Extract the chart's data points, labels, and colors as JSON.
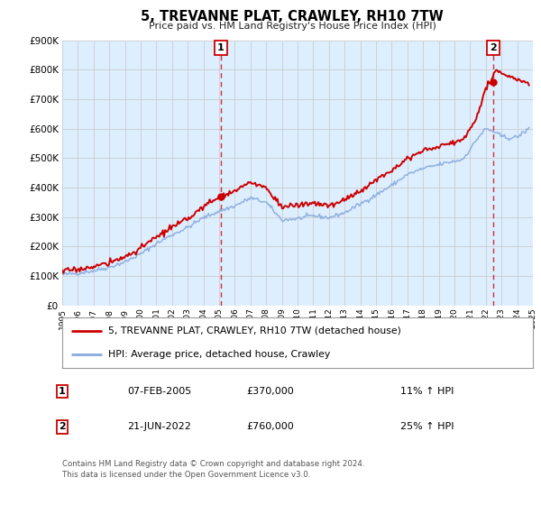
{
  "title": "5, TREVANNE PLAT, CRAWLEY, RH10 7TW",
  "subtitle": "Price paid vs. HM Land Registry's House Price Index (HPI)",
  "legend_line1": "5, TREVANNE PLAT, CRAWLEY, RH10 7TW (detached house)",
  "legend_line2": "HPI: Average price, detached house, Crawley",
  "sale1_date": "07-FEB-2005",
  "sale1_price": "£370,000",
  "sale1_hpi": "11% ↑ HPI",
  "sale2_date": "21-JUN-2022",
  "sale2_price": "£760,000",
  "sale2_hpi": "25% ↑ HPI",
  "footnote1": "Contains HM Land Registry data © Crown copyright and database right 2024.",
  "footnote2": "This data is licensed under the Open Government Licence v3.0.",
  "property_color": "#cc0000",
  "hpi_color": "#88aadd",
  "plot_bg_color": "#ddeeff",
  "marker_color": "#cc0000",
  "vline_color": "#cc0000",
  "ylim": [
    0,
    900000
  ],
  "yticks": [
    0,
    100000,
    200000,
    300000,
    400000,
    500000,
    600000,
    700000,
    800000,
    900000
  ],
  "sale1_year": 2005.1,
  "sale2_year": 2022.47,
  "sale1_value": 370000,
  "sale2_value": 760000,
  "xmin": 1995,
  "xmax": 2025
}
